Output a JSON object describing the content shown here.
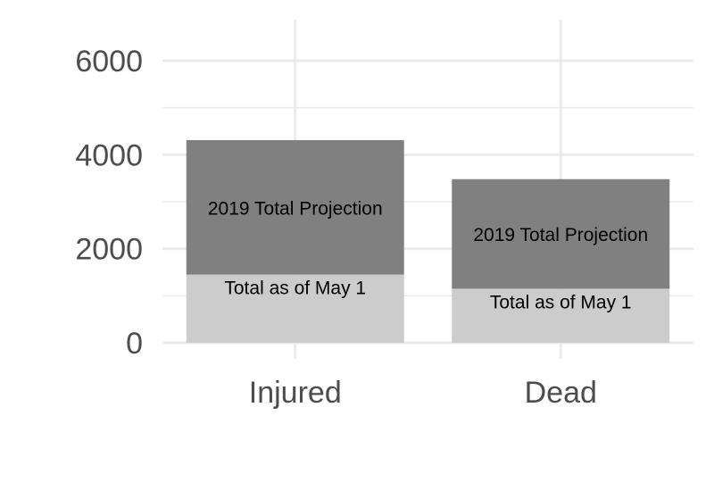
{
  "chart_data": {
    "type": "bar",
    "stacked": true,
    "categories": [
      "Injured",
      "Dead"
    ],
    "series": [
      {
        "name": "Total as of May 1",
        "values": [
          1450,
          1150
        ],
        "color": "#cccccc",
        "segment_label": "Total as of May 1"
      },
      {
        "name": "2019 Total Projection",
        "values": [
          2860,
          2330
        ],
        "color": "#808080",
        "segment_label": "2019 Total Projection"
      }
    ],
    "title": "",
    "xlabel": "",
    "ylabel": "",
    "ylim": [
      0,
      6500
    ],
    "yticks": [
      0,
      2000,
      4000,
      6000
    ],
    "ytick_labels": [
      "0",
      "2000",
      "4000",
      "6000"
    ],
    "grid": true,
    "legend": "none",
    "colors": {
      "background": "#ffffff",
      "grid": "#ebebeb",
      "text": "#4d4d4d"
    }
  }
}
